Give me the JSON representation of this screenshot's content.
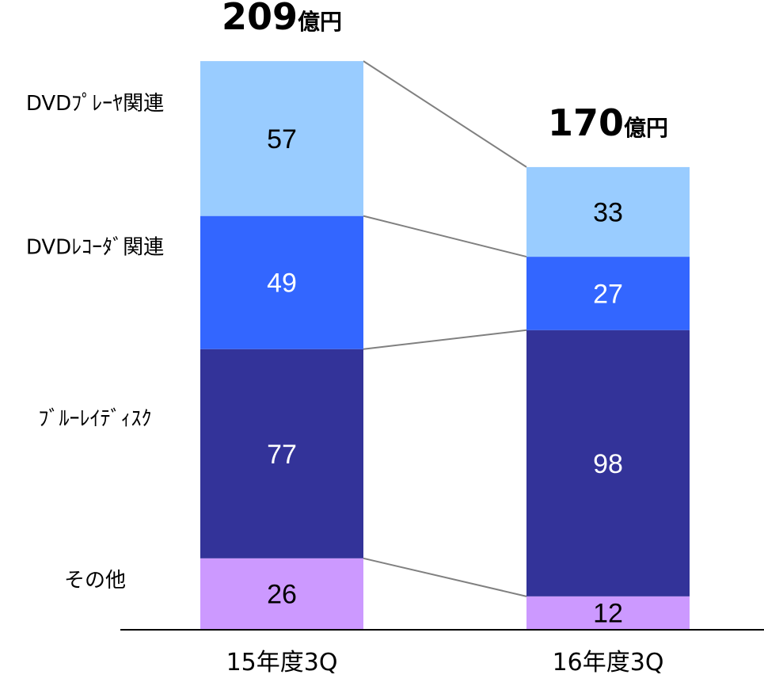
{
  "chart_data": {
    "type": "bar",
    "stacked": true,
    "categories": [
      "15年度3Q",
      "16年度3Q"
    ],
    "series": [
      {
        "name": "その他",
        "values": [
          26,
          12
        ],
        "color": "#CC99FF",
        "text_color": "#000000"
      },
      {
        "name": "ﾌﾞﾙｰﾚｲﾃﾞｨｽｸ",
        "values": [
          77,
          98
        ],
        "color": "#333399",
        "text_color": "#ffffff"
      },
      {
        "name": "DVDﾚｺｰﾀﾞ関連",
        "values": [
          49,
          27
        ],
        "color": "#3366FF",
        "text_color": "#ffffff"
      },
      {
        "name": "DVDﾌﾟﾚｰﾔ関連",
        "values": [
          57,
          33
        ],
        "color": "#99CCFF",
        "text_color": "#000000"
      }
    ],
    "totals": [
      {
        "value": "209",
        "unit": "億円"
      },
      {
        "value": "170",
        "unit": "億円"
      }
    ],
    "connector_color": "#808080",
    "legend_placement": "left",
    "grid": false
  }
}
